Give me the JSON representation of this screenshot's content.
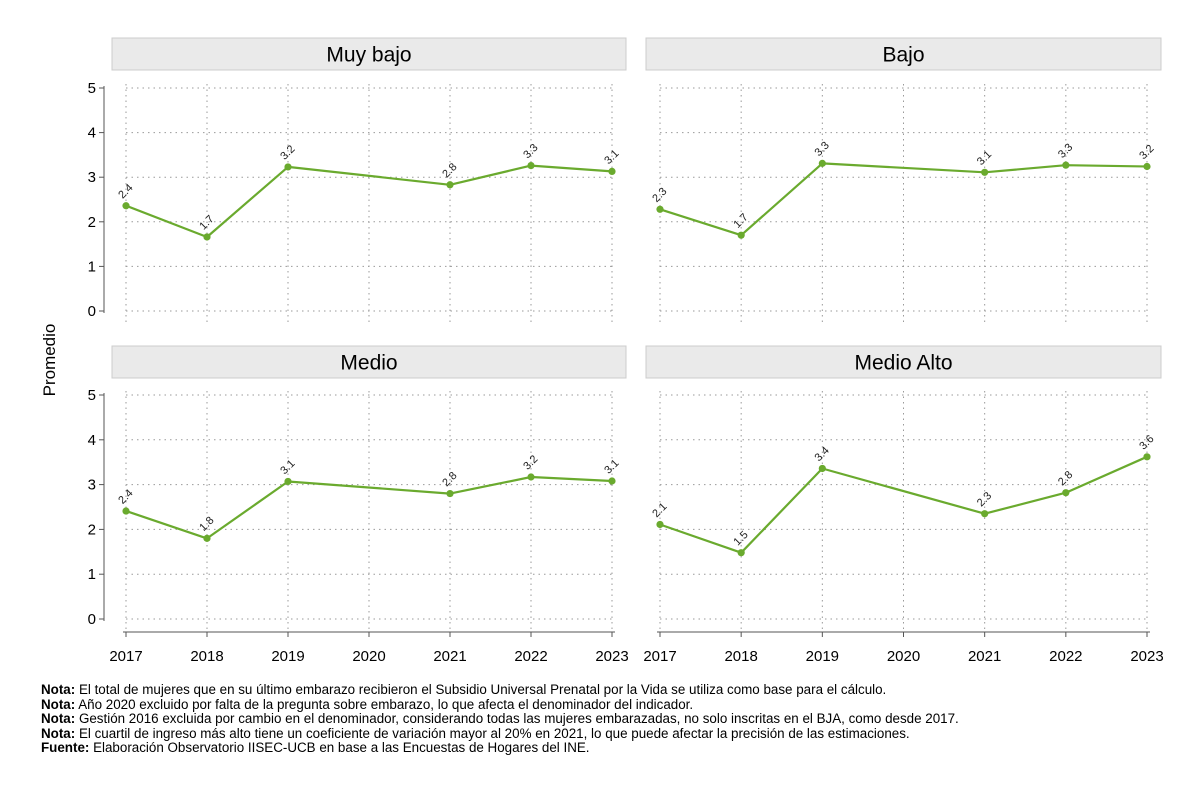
{
  "chart_data": {
    "type": "line",
    "ylabel": "Promedio",
    "ylim": [
      0,
      5
    ],
    "yticks": [
      "0",
      "1",
      "2",
      "3",
      "4",
      "5"
    ],
    "x": [
      "2017",
      "2018",
      "2019",
      "2020",
      "2021",
      "2022",
      "2023"
    ],
    "line_color": "#6aaa2e",
    "grid": "dotted",
    "panels": [
      {
        "title": "Muy bajo",
        "points": [
          {
            "x": "2017",
            "y": 2.36,
            "label": "2.4"
          },
          {
            "x": "2018",
            "y": 1.66,
            "label": "1.7"
          },
          {
            "x": "2019",
            "y": 3.23,
            "label": "3.2"
          },
          {
            "x": "2021",
            "y": 2.83,
            "label": "2.8"
          },
          {
            "x": "2022",
            "y": 3.26,
            "label": "3.3"
          },
          {
            "x": "2023",
            "y": 3.13,
            "label": "3.1"
          }
        ]
      },
      {
        "title": "Bajo",
        "points": [
          {
            "x": "2017",
            "y": 2.28,
            "label": "2.3"
          },
          {
            "x": "2018",
            "y": 1.7,
            "label": "1.7"
          },
          {
            "x": "2019",
            "y": 3.31,
            "label": "3.3"
          },
          {
            "x": "2021",
            "y": 3.11,
            "label": "3.1"
          },
          {
            "x": "2022",
            "y": 3.27,
            "label": "3.3"
          },
          {
            "x": "2023",
            "y": 3.24,
            "label": "3.2"
          }
        ]
      },
      {
        "title": "Medio",
        "points": [
          {
            "x": "2017",
            "y": 2.41,
            "label": "2.4"
          },
          {
            "x": "2018",
            "y": 1.8,
            "label": "1.8"
          },
          {
            "x": "2019",
            "y": 3.07,
            "label": "3.1"
          },
          {
            "x": "2021",
            "y": 2.8,
            "label": "2.8"
          },
          {
            "x": "2022",
            "y": 3.17,
            "label": "3.2"
          },
          {
            "x": "2023",
            "y": 3.08,
            "label": "3.1"
          }
        ]
      },
      {
        "title": "Medio Alto",
        "points": [
          {
            "x": "2017",
            "y": 2.11,
            "label": "2.1"
          },
          {
            "x": "2018",
            "y": 1.48,
            "label": "1.5"
          },
          {
            "x": "2019",
            "y": 3.36,
            "label": "3.4"
          },
          {
            "x": "2021",
            "y": 2.35,
            "label": "2.3"
          },
          {
            "x": "2022",
            "y": 2.82,
            "label": "2.8"
          },
          {
            "x": "2023",
            "y": 3.62,
            "label": "3.6"
          }
        ]
      }
    ]
  },
  "notes": [
    {
      "label": "Nota:",
      "text": " El total de mujeres que en su último embarazo recibieron el Subsidio Universal Prenatal por la Vida se utiliza como base para el cálculo."
    },
    {
      "label": "Nota:",
      "text": " Año 2020 excluido por falta de la pregunta sobre embarazo, lo que afecta el denominador del indicador."
    },
    {
      "label": "Nota:",
      "text": " Gestión 2016 excluida por cambio en el denominador, considerando todas las mujeres embarazadas, no solo inscritas en el BJA, como desde 2017."
    },
    {
      "label": "Nota:",
      "text": " El cuartil de ingreso más alto tiene un coeficiente de variación mayor al 20% en 2021, lo que puede afectar la precisión de las estimaciones."
    },
    {
      "label": "Fuente:",
      "text": " Elaboración Observatorio IISEC-UCB en base a las Encuestas de Hogares del INE."
    }
  ]
}
